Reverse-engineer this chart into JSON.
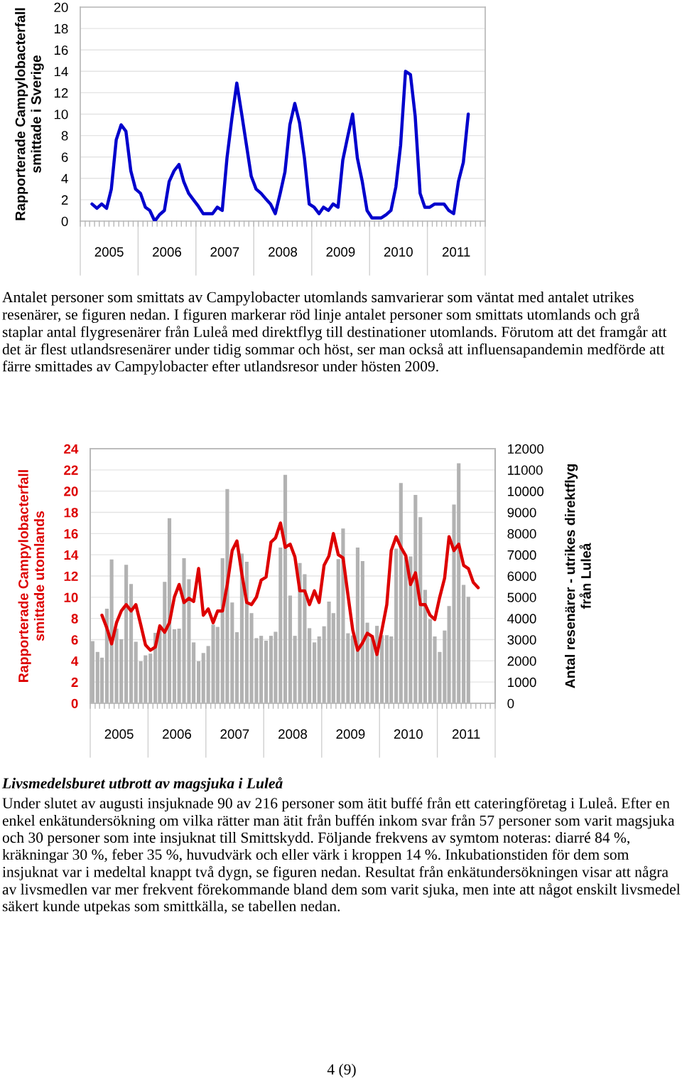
{
  "chart_data": [
    {
      "type": "line",
      "ylabel": "Rapporterade Campylobacterfall\nsmittade i Sverige",
      "color": "#0000cc",
      "x": [
        "2005-03-16",
        "2005-04-16",
        "2005-05-16",
        "2005-06-16",
        "2005-07-16",
        "2005-08-16",
        "2005-09-16",
        "2005-10-16",
        "2005-11-16",
        "2005-12-16",
        "2006-01-16",
        "2006-02-16",
        "2006-03-16",
        "2006-04-16",
        "2006-05-16",
        "2006-06-16",
        "2006-07-16",
        "2006-08-16",
        "2006-09-16",
        "2006-10-16",
        "2006-11-16",
        "2006-12-16",
        "2007-01-16",
        "2007-02-16",
        "2007-03-16",
        "2007-04-16",
        "2007-05-16",
        "2007-06-16",
        "2007-07-16",
        "2007-08-16",
        "2007-09-16",
        "2007-10-16",
        "2007-11-16",
        "2007-12-16",
        "2008-01-16",
        "2008-02-16",
        "2008-03-16",
        "2008-04-16",
        "2008-05-16",
        "2008-06-16",
        "2008-07-16",
        "2008-08-16",
        "2008-09-16",
        "2008-10-16",
        "2008-11-16",
        "2008-12-16",
        "2009-01-16",
        "2009-02-16",
        "2009-03-16",
        "2009-04-16",
        "2009-05-16",
        "2009-06-16",
        "2009-07-16",
        "2009-08-16",
        "2009-09-16",
        "2009-10-16",
        "2009-11-16",
        "2009-12-16",
        "2010-01-16",
        "2010-02-16",
        "2010-03-16",
        "2010-04-16",
        "2010-05-16",
        "2010-06-16",
        "2010-07-16",
        "2010-08-16",
        "2010-09-16",
        "2010-10-16",
        "2010-11-16",
        "2010-12-16",
        "2011-01-16",
        "2011-02-16",
        "2011-03-16",
        "2011-04-16",
        "2011-05-16",
        "2011-06-16",
        "2011-07-16",
        "2011-08-16",
        "2011-09-16"
      ],
      "values": [
        1.6,
        1.2,
        1.6,
        1.2,
        3.0,
        7.6,
        9.0,
        8.4,
        4.7,
        3.0,
        2.6,
        1.3,
        1.0,
        0.0,
        0.6,
        1.0,
        3.7,
        4.7,
        5.3,
        3.7,
        2.6,
        2.0,
        1.4,
        0.7,
        0.7,
        0.7,
        1.3,
        1.0,
        5.9,
        9.6,
        12.9,
        10.1,
        7.1,
        4.2,
        3.0,
        2.6,
        2.1,
        1.6,
        0.7,
        2.6,
        4.6,
        9.0,
        11.0,
        9.2,
        5.9,
        1.6,
        1.3,
        0.7,
        1.3,
        1.0,
        1.6,
        1.3,
        5.7,
        7.9,
        10.0,
        5.9,
        3.7,
        1.0,
        0.3,
        0.3,
        0.3,
        0.6,
        1.0,
        3.2,
        7.1,
        14.0,
        13.7,
        9.8,
        2.6,
        1.3,
        1.3,
        1.6,
        1.6,
        1.6,
        1.0,
        0.7,
        3.7,
        5.5,
        10.0
      ],
      "ylim": [
        0,
        20
      ],
      "yticks": [
        0,
        2,
        4,
        6,
        8,
        10,
        12,
        14,
        16,
        18,
        20
      ],
      "xlim": [
        "2005-01-01",
        "2012-01-01"
      ],
      "xticks": [
        {
          "value": "2005-01-01",
          "label": null
        },
        {
          "value": "2005-07-02",
          "label": "2005"
        },
        {
          "value": "2006-01-01",
          "label": null
        },
        {
          "value": "2006-07-02",
          "label": "2006"
        },
        {
          "value": "2007-01-01",
          "label": null
        },
        {
          "value": "2007-07-02",
          "label": "2007"
        },
        {
          "value": "2008-01-01",
          "label": null
        },
        {
          "value": "2008-07-02",
          "label": "2008"
        },
        {
          "value": "2009-01-01",
          "label": null
        },
        {
          "value": "2009-07-02",
          "label": "2009"
        },
        {
          "value": "2010-01-01",
          "label": null
        },
        {
          "value": "2010-07-02",
          "label": "2010"
        },
        {
          "value": "2011-01-01",
          "label": null
        },
        {
          "value": "2011-07-02",
          "label": "2011"
        },
        {
          "value": "2012-01-01",
          "label": null
        }
      ],
      "grid": "y"
    },
    {
      "type": "bar",
      "ylabel": "Rapporterade Campylobacterfall\nsmittade utomlands",
      "y2label": "Antal resenärer - utrikes direktflyg\nfrån Luleå",
      "series": [
        {
          "type": "bar",
          "axis": "y2",
          "color": "#b2b2b2",
          "x": [
            "2005-01-16",
            "2005-02-16",
            "2005-03-16",
            "2005-04-16",
            "2005-05-16",
            "2005-06-16",
            "2005-07-16",
            "2005-08-16",
            "2005-09-16",
            "2005-10-16",
            "2005-11-16",
            "2005-12-16",
            "2006-01-16",
            "2006-02-16",
            "2006-03-16",
            "2006-04-16",
            "2006-05-16",
            "2006-06-16",
            "2006-07-16",
            "2006-08-16",
            "2006-09-16",
            "2006-10-16",
            "2006-11-16",
            "2006-12-16",
            "2007-01-16",
            "2007-02-16",
            "2007-03-16",
            "2007-04-16",
            "2007-05-16",
            "2007-06-16",
            "2007-07-16",
            "2007-08-16",
            "2007-09-16",
            "2007-10-16",
            "2007-11-16",
            "2007-12-16",
            "2008-01-16",
            "2008-02-16",
            "2008-03-16",
            "2008-04-16",
            "2008-05-16",
            "2008-06-16",
            "2008-07-16",
            "2008-08-16",
            "2008-09-16",
            "2008-10-16",
            "2008-11-16",
            "2008-12-16",
            "2009-01-16",
            "2009-02-16",
            "2009-03-16",
            "2009-04-16",
            "2009-05-16",
            "2009-06-16",
            "2009-07-16",
            "2009-08-16",
            "2009-09-16",
            "2009-10-16",
            "2009-11-16",
            "2009-12-16",
            "2010-01-16",
            "2010-02-16",
            "2010-03-16",
            "2010-04-16",
            "2010-05-16",
            "2010-06-16",
            "2010-07-16",
            "2010-08-16",
            "2010-09-16",
            "2010-10-16",
            "2010-11-16",
            "2010-12-16",
            "2011-01-16",
            "2011-02-16",
            "2011-03-16",
            "2011-04-16",
            "2011-05-16",
            "2011-06-16",
            "2011-07-16"
          ],
          "values": [
            2930,
            2420,
            2150,
            4460,
            6780,
            3520,
            3020,
            6530,
            5620,
            2900,
            1980,
            2260,
            2340,
            3320,
            3520,
            5720,
            8720,
            3490,
            3520,
            6840,
            5850,
            2870,
            1980,
            2370,
            2700,
            3710,
            3600,
            6840,
            10100,
            4750,
            3350,
            7060,
            6670,
            4250,
            3070,
            3180,
            2950,
            3180,
            3370,
            7340,
            10770,
            5080,
            3180,
            6610,
            6080,
            3540,
            2870,
            3150,
            3630,
            4790,
            4250,
            6800,
            8240,
            3300,
            3200,
            7340,
            6700,
            3800,
            3200,
            3650,
            3210,
            3210,
            3150,
            7290,
            10380,
            6890,
            6920,
            9820,
            8770,
            5350,
            3970,
            3150,
            2420,
            3430,
            4580,
            9370,
            11310,
            5580,
            5020
          ]
        },
        {
          "type": "line",
          "color": "#dd0000",
          "x": [
            "2005-03-16",
            "2005-04-16",
            "2005-05-16",
            "2005-06-16",
            "2005-07-16",
            "2005-08-16",
            "2005-09-16",
            "2005-10-16",
            "2005-11-16",
            "2005-12-16",
            "2006-01-16",
            "2006-02-16",
            "2006-03-16",
            "2006-04-16",
            "2006-05-16",
            "2006-06-16",
            "2006-07-16",
            "2006-08-16",
            "2006-09-16",
            "2006-10-16",
            "2006-11-16",
            "2006-12-16",
            "2007-01-16",
            "2007-02-16",
            "2007-03-16",
            "2007-04-16",
            "2007-05-16",
            "2007-06-16",
            "2007-07-16",
            "2007-08-16",
            "2007-09-16",
            "2007-10-16",
            "2007-11-16",
            "2007-12-16",
            "2008-01-16",
            "2008-02-16",
            "2008-03-16",
            "2008-04-16",
            "2008-05-16",
            "2008-06-16",
            "2008-07-16",
            "2008-08-16",
            "2008-09-16",
            "2008-10-16",
            "2008-11-16",
            "2008-12-16",
            "2009-01-16",
            "2009-02-16",
            "2009-03-16",
            "2009-04-16",
            "2009-05-16",
            "2009-06-16",
            "2009-07-16",
            "2009-08-16",
            "2009-09-16",
            "2009-10-16",
            "2009-11-16",
            "2009-12-16",
            "2010-01-16",
            "2010-02-16",
            "2010-03-16",
            "2010-04-16",
            "2010-05-16",
            "2010-06-16",
            "2010-07-16",
            "2010-08-16",
            "2010-09-16",
            "2010-10-16",
            "2010-11-16",
            "2010-12-16",
            "2011-01-16",
            "2011-02-16",
            "2011-03-16",
            "2011-04-16",
            "2011-05-16",
            "2011-06-16",
            "2011-07-16",
            "2011-08-16",
            "2011-09-16"
          ],
          "values": [
            8.3,
            7.1,
            5.6,
            7.6,
            8.7,
            9.3,
            8.7,
            9.3,
            7.4,
            5.5,
            5.0,
            5.3,
            7.3,
            6.7,
            7.6,
            10.0,
            11.2,
            9.5,
            9.9,
            9.6,
            12.7,
            8.3,
            8.9,
            7.6,
            8.7,
            8.7,
            11.2,
            14.4,
            15.3,
            12.2,
            9.5,
            9.3,
            10.0,
            11.6,
            11.9,
            15.2,
            15.6,
            17.0,
            14.7,
            15.0,
            13.8,
            10.6,
            10.6,
            9.3,
            10.6,
            9.5,
            13.0,
            13.9,
            16.0,
            14.0,
            13.7,
            10.2,
            6.9,
            5.0,
            5.7,
            6.6,
            6.3,
            4.6,
            6.9,
            9.3,
            14.4,
            15.7,
            14.7,
            13.9,
            11.2,
            12.3,
            9.3,
            9.3,
            8.3,
            7.9,
            10.0,
            11.8,
            15.7,
            14.4,
            15.0,
            13.0,
            12.7,
            11.4,
            10.9
          ]
        }
      ],
      "ylim": [
        0,
        24
      ],
      "yticks": [
        0,
        2,
        4,
        6,
        8,
        10,
        12,
        14,
        16,
        18,
        20,
        22,
        24
      ],
      "y2lim": [
        0,
        12000
      ],
      "y2ticks": [
        0,
        1000,
        2000,
        3000,
        4000,
        5000,
        6000,
        7000,
        8000,
        9000,
        10000,
        11000,
        12000
      ],
      "xlim": [
        "2005-01-01",
        "2012-01-01"
      ],
      "xticks": [
        {
          "value": "2005-01-01",
          "label": null
        },
        {
          "value": "2005-07-02",
          "label": "2005"
        },
        {
          "value": "2006-01-01",
          "label": null
        },
        {
          "value": "2006-07-02",
          "label": "2006"
        },
        {
          "value": "2007-01-01",
          "label": null
        },
        {
          "value": "2007-07-02",
          "label": "2007"
        },
        {
          "value": "2008-01-01",
          "label": null
        },
        {
          "value": "2008-07-02",
          "label": "2008"
        },
        {
          "value": "2009-01-01",
          "label": null
        },
        {
          "value": "2009-07-02",
          "label": "2009"
        },
        {
          "value": "2010-01-01",
          "label": null
        },
        {
          "value": "2010-07-02",
          "label": "2010"
        },
        {
          "value": "2011-01-01",
          "label": null
        },
        {
          "value": "2011-07-02",
          "label": "2011"
        },
        {
          "value": "2012-01-01",
          "label": null
        }
      ],
      "grid": "y",
      "annotations": [
        "Antalet personer som smittats av Campylobacter utomlands samvarierar som väntat med antalet utrikes resenärer, se figuren nedan. I figuren markerar röd linje antalet personer som smittats utomlands och grå staplar antal flygresenärer från Luleå med direktflyg till destinationer utomlands. Förutom att det framgår att det är flest utlandsresenärer under tidig sommar och höst, ser man också att influensapandemin medförde att färre smittades av Campylobacter efter utlandsresor under hösten 2009.",
        "Livsmedelsburet utbrott av magsjuka i Luleå",
        "Under slutet av augusti insjuknade 90 av 216 personer som ätit buffé från ett cateringföretag i Luleå. Efter en enkel enkätundersökning om vilka rätter man ätit från buffén inkom svar från 57 personer som varit magsjuka och 30 personer som inte insjuknat till Smittskydd. Följande frekvens av symtom noteras: diarré 84 %, kräkningar 30 %, feber 35 %, huvudvärk och eller värk i kroppen 14 %. Inkubationstiden för dem som insjuknat var i medeltal knappt två dygn, se figuren nedan. Resultat från enkätundersökningen visar att några av livsmedlen var mer frekvent förekommande bland dem som varit sjuka, men inte att något enskilt livsmedel säkert kunde utpekas som smittkälla, se tabellen nedan.",
        "4 (9)"
      ]
    }
  ]
}
